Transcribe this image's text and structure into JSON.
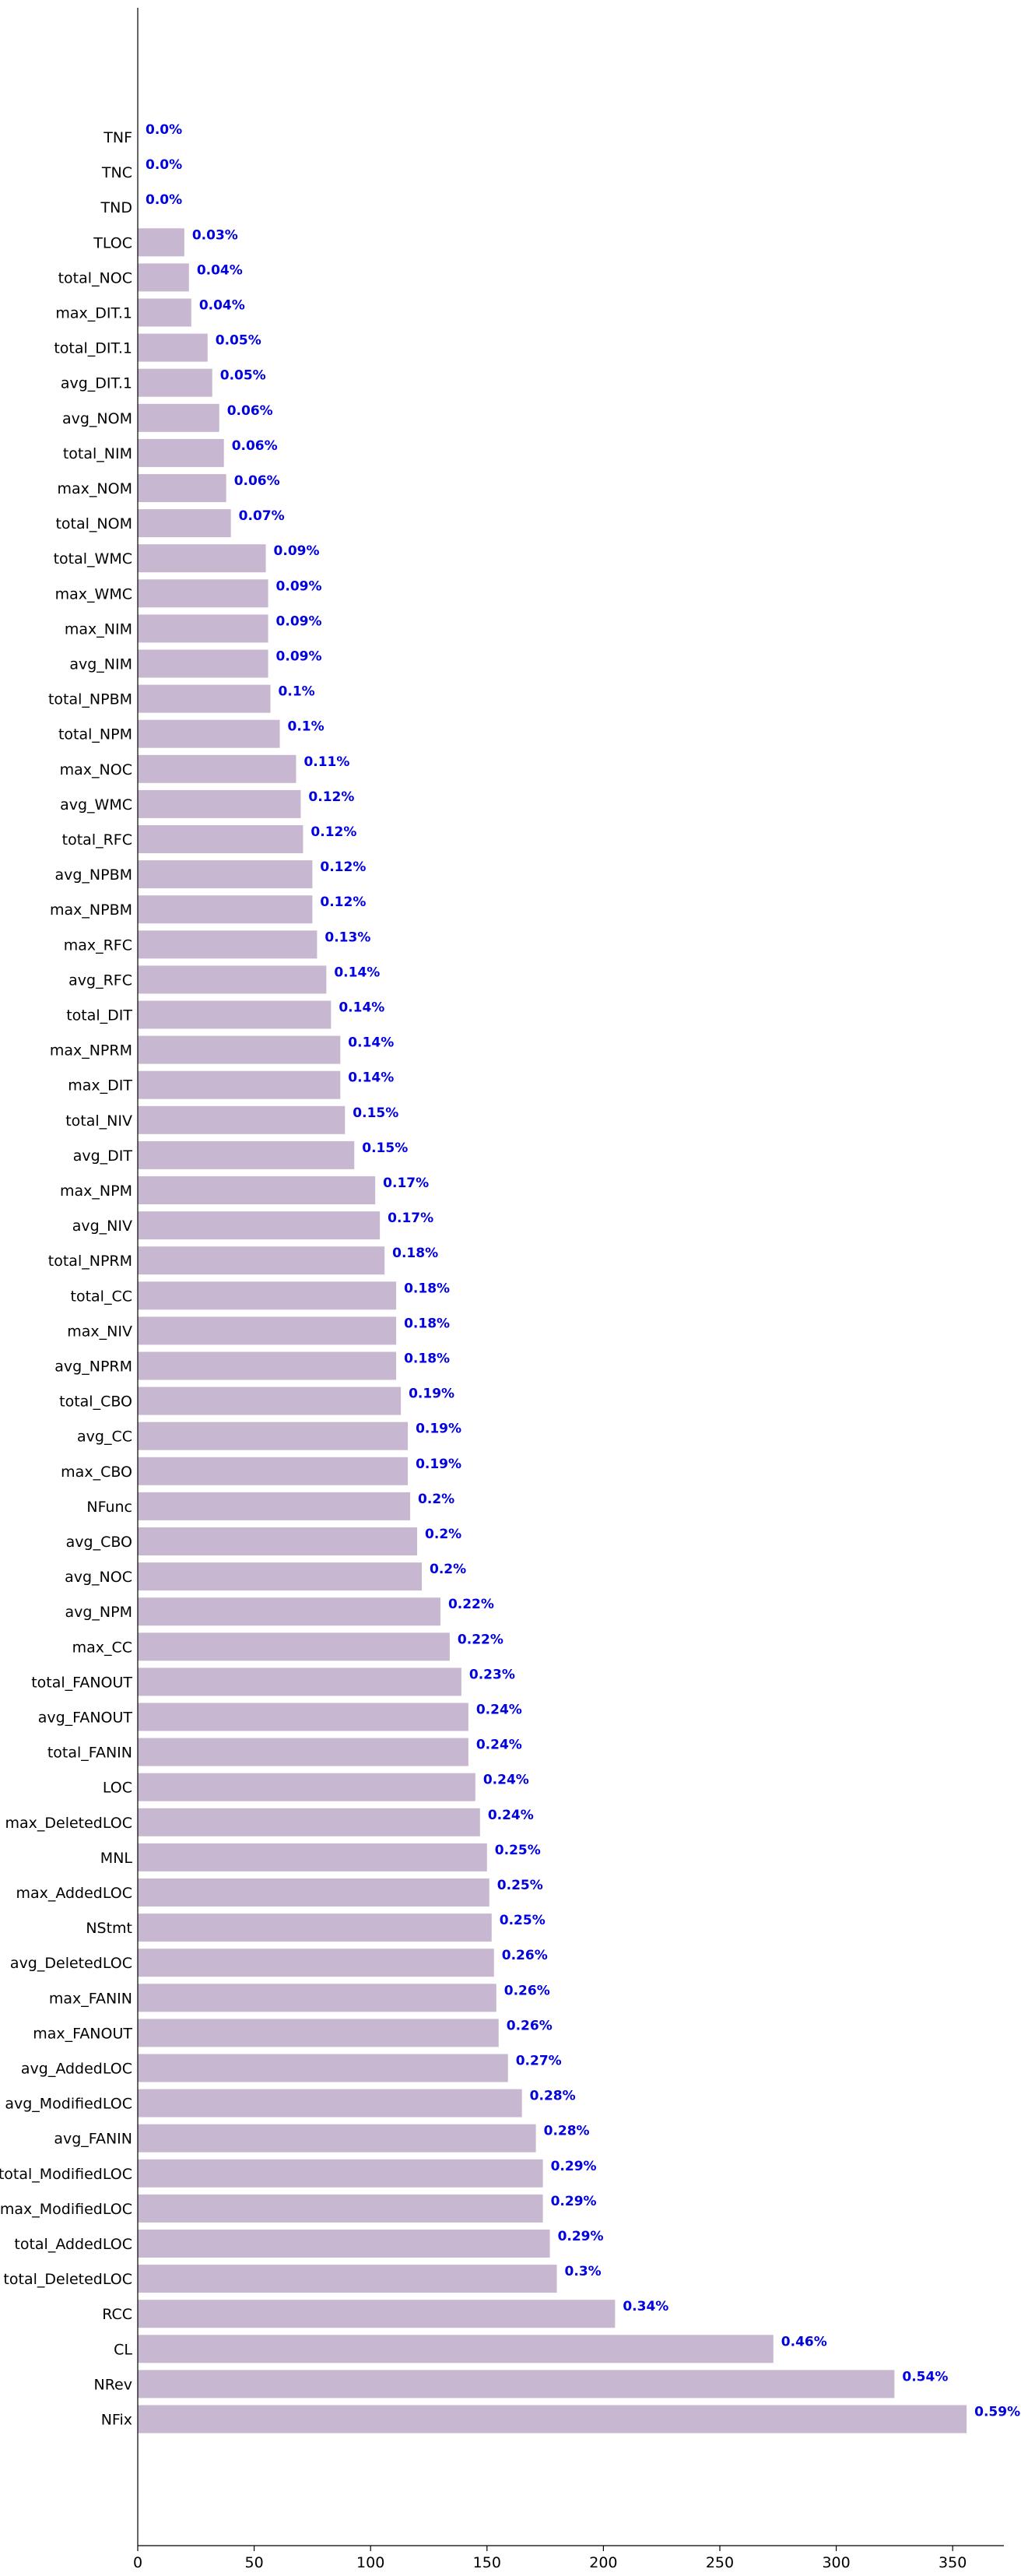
{
  "chart_data": {
    "type": "bar",
    "orientation": "horizontal",
    "title": "",
    "xlabel": "",
    "ylabel": "",
    "xlim": [
      0,
      372
    ],
    "xticks": [
      0,
      50,
      100,
      150,
      200,
      250,
      300,
      350
    ],
    "grid": false,
    "bar_color": "#c8b7d1",
    "label_color": "#0000e0",
    "categories": [
      "TNF",
      "TNC",
      "TND",
      "TLOC",
      "total_NOC",
      "max_DIT.1",
      "total_DIT.1",
      "avg_DIT.1",
      "avg_NOM",
      "total_NIM",
      "max_NOM",
      "total_NOM",
      "total_WMC",
      "max_WMC",
      "max_NIM",
      "avg_NIM",
      "total_NPBM",
      "total_NPM",
      "max_NOC",
      "avg_WMC",
      "total_RFC",
      "avg_NPBM",
      "max_NPBM",
      "max_RFC",
      "avg_RFC",
      "total_DIT",
      "max_NPRM",
      "max_DIT",
      "total_NIV",
      "avg_DIT",
      "max_NPM",
      "avg_NIV",
      "total_NPRM",
      "total_CC",
      "max_NIV",
      "avg_NPRM",
      "total_CBO",
      "avg_CC",
      "max_CBO",
      "NFunc",
      "avg_CBO",
      "avg_NOC",
      "avg_NPM",
      "max_CC",
      "total_FANOUT",
      "avg_FANOUT",
      "total_FANIN",
      "LOC",
      "max_DeletedLOC",
      "MNL",
      "max_AddedLOC",
      "NStmt",
      "avg_DeletedLOC",
      "max_FANIN",
      "max_FANOUT",
      "avg_AddedLOC",
      "avg_ModifiedLOC",
      "avg_FANIN",
      "total_ModifiedLOC",
      "max_ModifiedLOC",
      "total_AddedLOC",
      "total_DeletedLOC",
      "RCC",
      "CL",
      "NRev",
      "NFix"
    ],
    "values": [
      0,
      0,
      0,
      20,
      22,
      23,
      30,
      32,
      35,
      37,
      38,
      40,
      55,
      56,
      56,
      56,
      57,
      61,
      68,
      70,
      71,
      75,
      75,
      77,
      81,
      83,
      87,
      87,
      89,
      93,
      102,
      104,
      106,
      111,
      111,
      111,
      113,
      116,
      116,
      117,
      120,
      122,
      130,
      134,
      139,
      142,
      142,
      145,
      147,
      150,
      151,
      152,
      153,
      154,
      155,
      159,
      165,
      171,
      174,
      174,
      177,
      180,
      205,
      273,
      325,
      356
    ],
    "data_labels": [
      "0.0%",
      "0.0%",
      "0.0%",
      "0.03%",
      "0.04%",
      "0.04%",
      "0.05%",
      "0.05%",
      "0.06%",
      "0.06%",
      "0.06%",
      "0.07%",
      "0.09%",
      "0.09%",
      "0.09%",
      "0.09%",
      "0.1%",
      "0.1%",
      "0.11%",
      "0.12%",
      "0.12%",
      "0.12%",
      "0.12%",
      "0.13%",
      "0.14%",
      "0.14%",
      "0.14%",
      "0.14%",
      "0.15%",
      "0.15%",
      "0.17%",
      "0.17%",
      "0.18%",
      "0.18%",
      "0.18%",
      "0.18%",
      "0.19%",
      "0.19%",
      "0.19%",
      "0.2%",
      "0.2%",
      "0.2%",
      "0.22%",
      "0.22%",
      "0.23%",
      "0.24%",
      "0.24%",
      "0.24%",
      "0.24%",
      "0.25%",
      "0.25%",
      "0.25%",
      "0.26%",
      "0.26%",
      "0.26%",
      "0.27%",
      "0.28%",
      "0.28%",
      "0.29%",
      "0.29%",
      "0.29%",
      "0.3%",
      "0.34%",
      "0.46%",
      "0.54%",
      "0.59%"
    ]
  }
}
